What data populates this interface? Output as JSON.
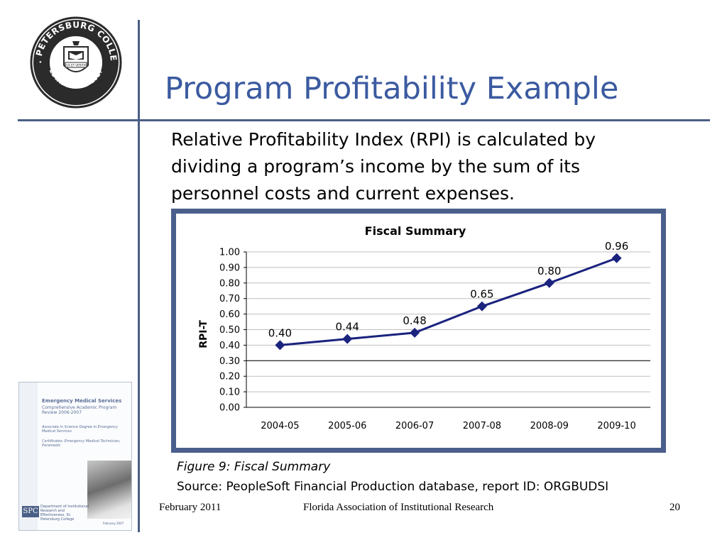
{
  "logo": {
    "ring_text": "ST. PETERSBURG COLLEGE",
    "bottom_text": "ESTABLISHED 1927",
    "ribbon_text": "LUX ET VERITAS"
  },
  "slide": {
    "title": "Program Profitability Example",
    "body": "Relative Profitability Index (RPI) is calculated by dividing a program’s income by the sum of its personnel costs and current expenses.",
    "caption": "Figure 9: Fiscal Summary",
    "source": "Source: PeopleSoft Financial Production database, report ID: ORGBUDSI"
  },
  "cover": {
    "title": "Emergency Medical Services",
    "subtitle": "Comprehensive Academic Program Review 2006-2007",
    "degree": "Associate in Science Degree in Emergency Medical Services",
    "certificates": "Certificates: Emergency Medical Technician, Paramedic",
    "logo_text": "SPC",
    "dept": "Department of Institutional Research and Effectiveness, St. Petersburg College",
    "date": "February 2007"
  },
  "footer": {
    "date": "February 2011",
    "organization": "Florida Association of Institutional Research",
    "page": "20"
  },
  "colors": {
    "accent": "#3b5aa0",
    "rule": "#4a5f86",
    "series": "#1a237e"
  },
  "chart_data": {
    "type": "line",
    "title": "Fiscal Summary",
    "xlabel": "",
    "ylabel": "RPI-T",
    "categories": [
      "2004-05",
      "2005-06",
      "2006-07",
      "2007-08",
      "2008-09",
      "2009-10"
    ],
    "series": [
      {
        "values": [
          0.4,
          0.44,
          0.48,
          0.65,
          0.8,
          0.96
        ]
      }
    ],
    "data_labels": [
      "0.40",
      "0.44",
      "0.48",
      "0.65",
      "0.80",
      "0.96"
    ],
    "y_ticks": [
      "0.00",
      "0.10",
      "0.20",
      "0.30",
      "0.40",
      "0.50",
      "0.60",
      "0.70",
      "0.80",
      "0.90",
      "1.00"
    ],
    "ylim": [
      0,
      1.0
    ],
    "grid": true,
    "legend": "none",
    "marker": "diamond"
  }
}
